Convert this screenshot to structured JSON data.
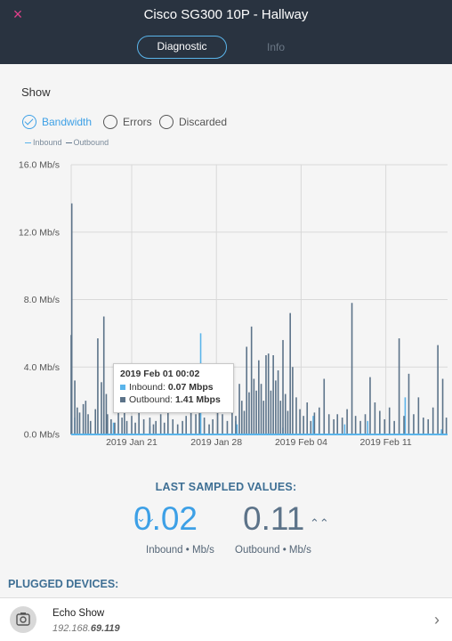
{
  "header": {
    "close_icon": "×",
    "title": "Cisco SG300 10P - Hallway",
    "tabs": [
      "Diagnostic",
      "Info"
    ]
  },
  "show": {
    "label": "Show",
    "options": [
      {
        "label": "Bandwidth",
        "checked": true
      },
      {
        "label": "Errors",
        "checked": false
      },
      {
        "label": "Discarded",
        "checked": false
      }
    ],
    "legend": [
      "Inbound",
      "Outbound"
    ]
  },
  "colors": {
    "inbound": "#5ab4ea",
    "outbound": "#5c7389",
    "accent": "#3da0e6",
    "close": "#e0408a"
  },
  "chart_data": {
    "type": "bar",
    "title": "",
    "xlabel": "",
    "ylabel": "",
    "ylim": [
      0,
      16
    ],
    "y_ticks": [
      "0.0 Mb/s",
      "4.0 Mb/s",
      "8.0 Mb/s",
      "12.0 Mb/s",
      "16.0 Mb/s"
    ],
    "x_ticks": [
      "2019 Jan 21",
      "2019 Jan 28",
      "2019 Feb 04",
      "2019 Feb 11"
    ],
    "x_tick_days": [
      5,
      12,
      19,
      26
    ],
    "x_range_days": [
      0,
      31.1
    ],
    "legend": "top-left",
    "grid": true,
    "series": [
      {
        "name": "Inbound",
        "x_days": [
          0.3,
          3.5,
          6.5,
          10.6,
          10.7,
          13.6,
          13.7,
          17.5,
          20.0,
          22.6,
          24.5,
          27.6,
          30.6
        ],
        "values": [
          1.0,
          0.7,
          0.5,
          1.2,
          6.0,
          0.8,
          0.6,
          0.4,
          1.1,
          0.6,
          0.8,
          2.2,
          0.3
        ]
      },
      {
        "name": "Outbound",
        "x_days": [
          0.0,
          0.05,
          0.3,
          0.5,
          0.7,
          1.0,
          1.2,
          1.4,
          1.6,
          2.0,
          2.2,
          2.5,
          2.7,
          2.9,
          3.0,
          3.3,
          3.6,
          3.9,
          4.2,
          4.4,
          4.6,
          5.0,
          5.3,
          5.6,
          6.0,
          6.5,
          6.8,
          7.0,
          7.4,
          7.7,
          8.0,
          8.4,
          8.8,
          9.2,
          9.5,
          9.9,
          10.3,
          10.6,
          11.0,
          11.4,
          11.7,
          12.1,
          12.5,
          12.9,
          13.3,
          13.6,
          13.9,
          14.1,
          14.3,
          14.5,
          14.7,
          14.9,
          15.1,
          15.3,
          15.5,
          15.7,
          15.9,
          16.1,
          16.3,
          16.5,
          16.7,
          16.9,
          17.1,
          17.3,
          17.5,
          17.7,
          17.9,
          18.1,
          18.3,
          18.6,
          18.9,
          19.2,
          19.5,
          19.8,
          20.1,
          20.5,
          20.9,
          21.3,
          21.7,
          22.0,
          22.4,
          22.8,
          23.2,
          23.5,
          23.9,
          24.3,
          24.7,
          25.1,
          25.5,
          25.9,
          26.3,
          26.7,
          27.1,
          27.5,
          27.9,
          28.3,
          28.7,
          29.1,
          29.5,
          29.9,
          30.3,
          30.7,
          31.0
        ],
        "values": [
          5.9,
          13.7,
          3.2,
          1.6,
          1.3,
          1.8,
          2.0,
          1.2,
          0.8,
          1.5,
          5.7,
          3.1,
          7.0,
          2.4,
          1.2,
          0.9,
          0.7,
          2.2,
          1.0,
          1.3,
          0.8,
          1.1,
          0.7,
          2.4,
          0.9,
          1.0,
          0.6,
          0.8,
          1.2,
          0.7,
          1.4,
          0.9,
          0.6,
          0.8,
          1.1,
          1.3,
          1.2,
          1.9,
          1.0,
          0.6,
          0.9,
          1.5,
          1.2,
          0.8,
          1.3,
          1.1,
          3.0,
          2.0,
          1.4,
          5.2,
          2.5,
          6.4,
          3.3,
          2.6,
          4.4,
          3.0,
          2.0,
          4.7,
          4.8,
          2.6,
          4.7,
          3.2,
          3.8,
          2.0,
          5.6,
          2.4,
          1.4,
          7.2,
          4.0,
          2.2,
          1.5,
          1.1,
          1.9,
          0.8,
          1.3,
          1.6,
          3.3,
          1.2,
          0.9,
          1.2,
          1.0,
          1.5,
          7.8,
          1.1,
          0.8,
          1.2,
          3.4,
          1.9,
          1.4,
          0.9,
          1.6,
          0.8,
          5.7,
          1.1,
          3.6,
          1.2,
          2.2,
          1.0,
          0.9,
          1.6,
          5.3,
          3.3,
          1.0
        ]
      }
    ],
    "tooltip": {
      "title": "2019 Feb 01 00:02",
      "inbound_label": "Inbound:",
      "inbound_value": "0.07 Mbps",
      "outbound_label": "Outbound:",
      "outbound_value": "1.41 Mbps"
    }
  },
  "last_sampled": {
    "title": "LAST SAMPLED VALUES:",
    "inbound_value": "0.02",
    "inbound_caption": "Inbound • Mb/s",
    "outbound_value": "0.11",
    "outbound_caption": "Outbound • Mb/s",
    "down_arrow": "⌄⌄",
    "up_arrow": "⌃⌃"
  },
  "plugged": {
    "title": "PLUGGED DEVICES:",
    "device_name": "Echo Show",
    "device_ip_prefix": "192.168.",
    "device_ip_suffix": "69.119",
    "chevron": "›"
  }
}
